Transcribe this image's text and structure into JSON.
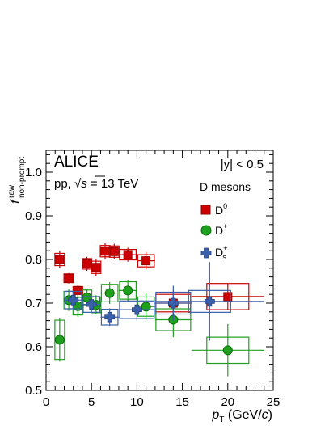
{
  "chart_data": {
    "type": "scatter",
    "xlim": [
      0,
      25
    ],
    "ylim": [
      0.5,
      1.05
    ],
    "x_ticks": [
      0,
      5,
      10,
      15,
      20,
      25
    ],
    "y_ticks": [
      0.5,
      0.6,
      0.7,
      0.8,
      0.9,
      1.0
    ],
    "x_tick_labels": [
      "0",
      "5",
      "10",
      "15",
      "20",
      "25"
    ],
    "y_tick_labels": [
      "0.5",
      "0.6",
      "0.7",
      "0.8",
      "0.9",
      "1.0"
    ],
    "xlabel": {
      "p": "p",
      "sub": "T",
      "rest": " (GeV/",
      "c": "c",
      "close": ")"
    },
    "ylabel": {
      "f": "f",
      "sup": "raw",
      "sub": "non-prompt"
    },
    "annotations": {
      "experiment": "ALICE",
      "system_prefix": "pp, ",
      "sqrt": "√",
      "s": "s",
      "energy": " = 13 TeV",
      "rapidity": "|y| < 0.5",
      "y_sym": "y",
      "legend_title": "D mesons"
    },
    "legend": [
      {
        "base": "D",
        "sup": "0",
        "sub": ""
      },
      {
        "base": "D",
        "sup": "+",
        "sub": ""
      },
      {
        "base": "D",
        "sup": "+",
        "sub": "s"
      }
    ],
    "series": [
      {
        "marker": "square",
        "color": "#cc0000",
        "stroke": "#990000",
        "points": [
          {
            "x": 1.5,
            "y": 0.8,
            "xerr": 0.5,
            "stat": 0.02,
            "syst": 0.014
          },
          {
            "x": 2.5,
            "y": 0.757,
            "xerr": 0.5,
            "stat": 0.012,
            "syst": 0.01
          },
          {
            "x": 3.5,
            "y": 0.729,
            "xerr": 0.5,
            "stat": 0.012,
            "syst": 0.009
          },
          {
            "x": 4.5,
            "y": 0.79,
            "xerr": 0.5,
            "stat": 0.016,
            "syst": 0.012
          },
          {
            "x": 5.5,
            "y": 0.782,
            "xerr": 0.5,
            "stat": 0.02,
            "syst": 0.014
          },
          {
            "x": 6.5,
            "y": 0.819,
            "xerr": 0.5,
            "stat": 0.018,
            "syst": 0.013
          },
          {
            "x": 7.5,
            "y": 0.818,
            "xerr": 0.5,
            "stat": 0.018,
            "syst": 0.013
          },
          {
            "x": 9.0,
            "y": 0.811,
            "xerr": 1.0,
            "stat": 0.016,
            "syst": 0.012
          },
          {
            "x": 11.0,
            "y": 0.797,
            "xerr": 1.0,
            "stat": 0.02,
            "syst": 0.014
          },
          {
            "x": 14.0,
            "y": 0.7,
            "xerr": 2.0,
            "stat": 0.03,
            "syst": 0.02
          },
          {
            "x": 20.0,
            "y": 0.715,
            "xerr": 4.0,
            "stat": 0.03,
            "syst": 0.03
          }
        ]
      },
      {
        "marker": "circle",
        "color": "#1ea01e",
        "stroke": "#0c6e0c",
        "points": [
          {
            "x": 1.5,
            "y": 0.616,
            "xerr": 0.5,
            "stat": 0.05,
            "syst": 0.045
          },
          {
            "x": 2.5,
            "y": 0.707,
            "xerr": 0.5,
            "stat": 0.025,
            "syst": 0.02
          },
          {
            "x": 3.5,
            "y": 0.693,
            "xerr": 0.5,
            "stat": 0.025,
            "syst": 0.02
          },
          {
            "x": 4.5,
            "y": 0.713,
            "xerr": 0.5,
            "stat": 0.02,
            "syst": 0.017
          },
          {
            "x": 5.5,
            "y": 0.696,
            "xerr": 0.5,
            "stat": 0.022,
            "syst": 0.018
          },
          {
            "x": 7.0,
            "y": 0.723,
            "xerr": 1.0,
            "stat": 0.025,
            "syst": 0.02
          },
          {
            "x": 9.0,
            "y": 0.729,
            "xerr": 1.0,
            "stat": 0.025,
            "syst": 0.02
          },
          {
            "x": 11.0,
            "y": 0.692,
            "xerr": 1.0,
            "stat": 0.03,
            "syst": 0.022
          },
          {
            "x": 14.0,
            "y": 0.662,
            "xerr": 2.0,
            "stat": 0.04,
            "syst": 0.025
          },
          {
            "x": 20.0,
            "y": 0.592,
            "xerr": 4.0,
            "stat": 0.06,
            "syst": 0.03
          }
        ]
      },
      {
        "marker": "cross",
        "color": "#3a5faa",
        "stroke": "#24407a",
        "points": [
          {
            "x": 3.0,
            "y": 0.707,
            "xerr": 1.0,
            "stat": 0.02,
            "syst": 0.02
          },
          {
            "x": 5.0,
            "y": 0.697,
            "xerr": 1.0,
            "stat": 0.02,
            "syst": 0.018
          },
          {
            "x": 7.0,
            "y": 0.668,
            "xerr": 1.0,
            "stat": 0.02,
            "syst": 0.018
          },
          {
            "x": 10.0,
            "y": 0.685,
            "xerr": 2.0,
            "stat": 0.025,
            "syst": 0.02
          },
          {
            "x": 14.0,
            "y": 0.7,
            "xerr": 2.0,
            "stat": 0.04,
            "syst": 0.025
          },
          {
            "x": 18.0,
            "y": 0.704,
            "xerr": 6.0,
            "stat": 0.09,
            "syst": 0.025
          }
        ]
      }
    ],
    "grid": false,
    "legend_placement": "top-right"
  }
}
